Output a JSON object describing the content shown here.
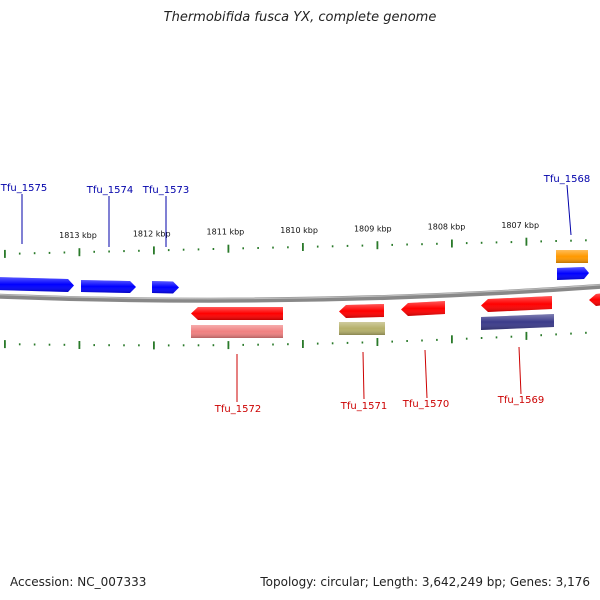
{
  "title": "Thermobifida fusca YX, complete genome",
  "footer": {
    "accession": "Accession: NC_007333",
    "topology": "Topology: circular; Length: 3,642,249 bp; Genes: 3,176"
  },
  "colors": {
    "forward_label": "#0000aa",
    "reverse_label": "#cc0000",
    "backbone": "#888888",
    "tick": "#2a7a2a"
  },
  "scale": {
    "unit": "kbp",
    "ticks": [
      {
        "kbp": 1813,
        "label": "1813 kbp"
      },
      {
        "kbp": 1812,
        "label": "1812 kbp"
      },
      {
        "kbp": 1811,
        "label": "1811 kbp"
      },
      {
        "kbp": 1810,
        "label": "1810 kbp"
      },
      {
        "kbp": 1809,
        "label": "1809 kbp"
      },
      {
        "kbp": 1808,
        "label": "1808 kbp"
      },
      {
        "kbp": 1807,
        "label": "1807 kbp"
      }
    ]
  },
  "genes": [
    {
      "label": "Tfu_1575",
      "strand": "+"
    },
    {
      "label": "Tfu_1574",
      "strand": "+"
    },
    {
      "label": "Tfu_1573",
      "strand": "+"
    },
    {
      "label": "Tfu_1568",
      "strand": "+"
    },
    {
      "label": "Tfu_1572",
      "strand": "-"
    },
    {
      "label": "Tfu_1571",
      "strand": "-"
    },
    {
      "label": "Tfu_1570",
      "strand": "-"
    },
    {
      "label": "Tfu_1569",
      "strand": "-"
    }
  ]
}
